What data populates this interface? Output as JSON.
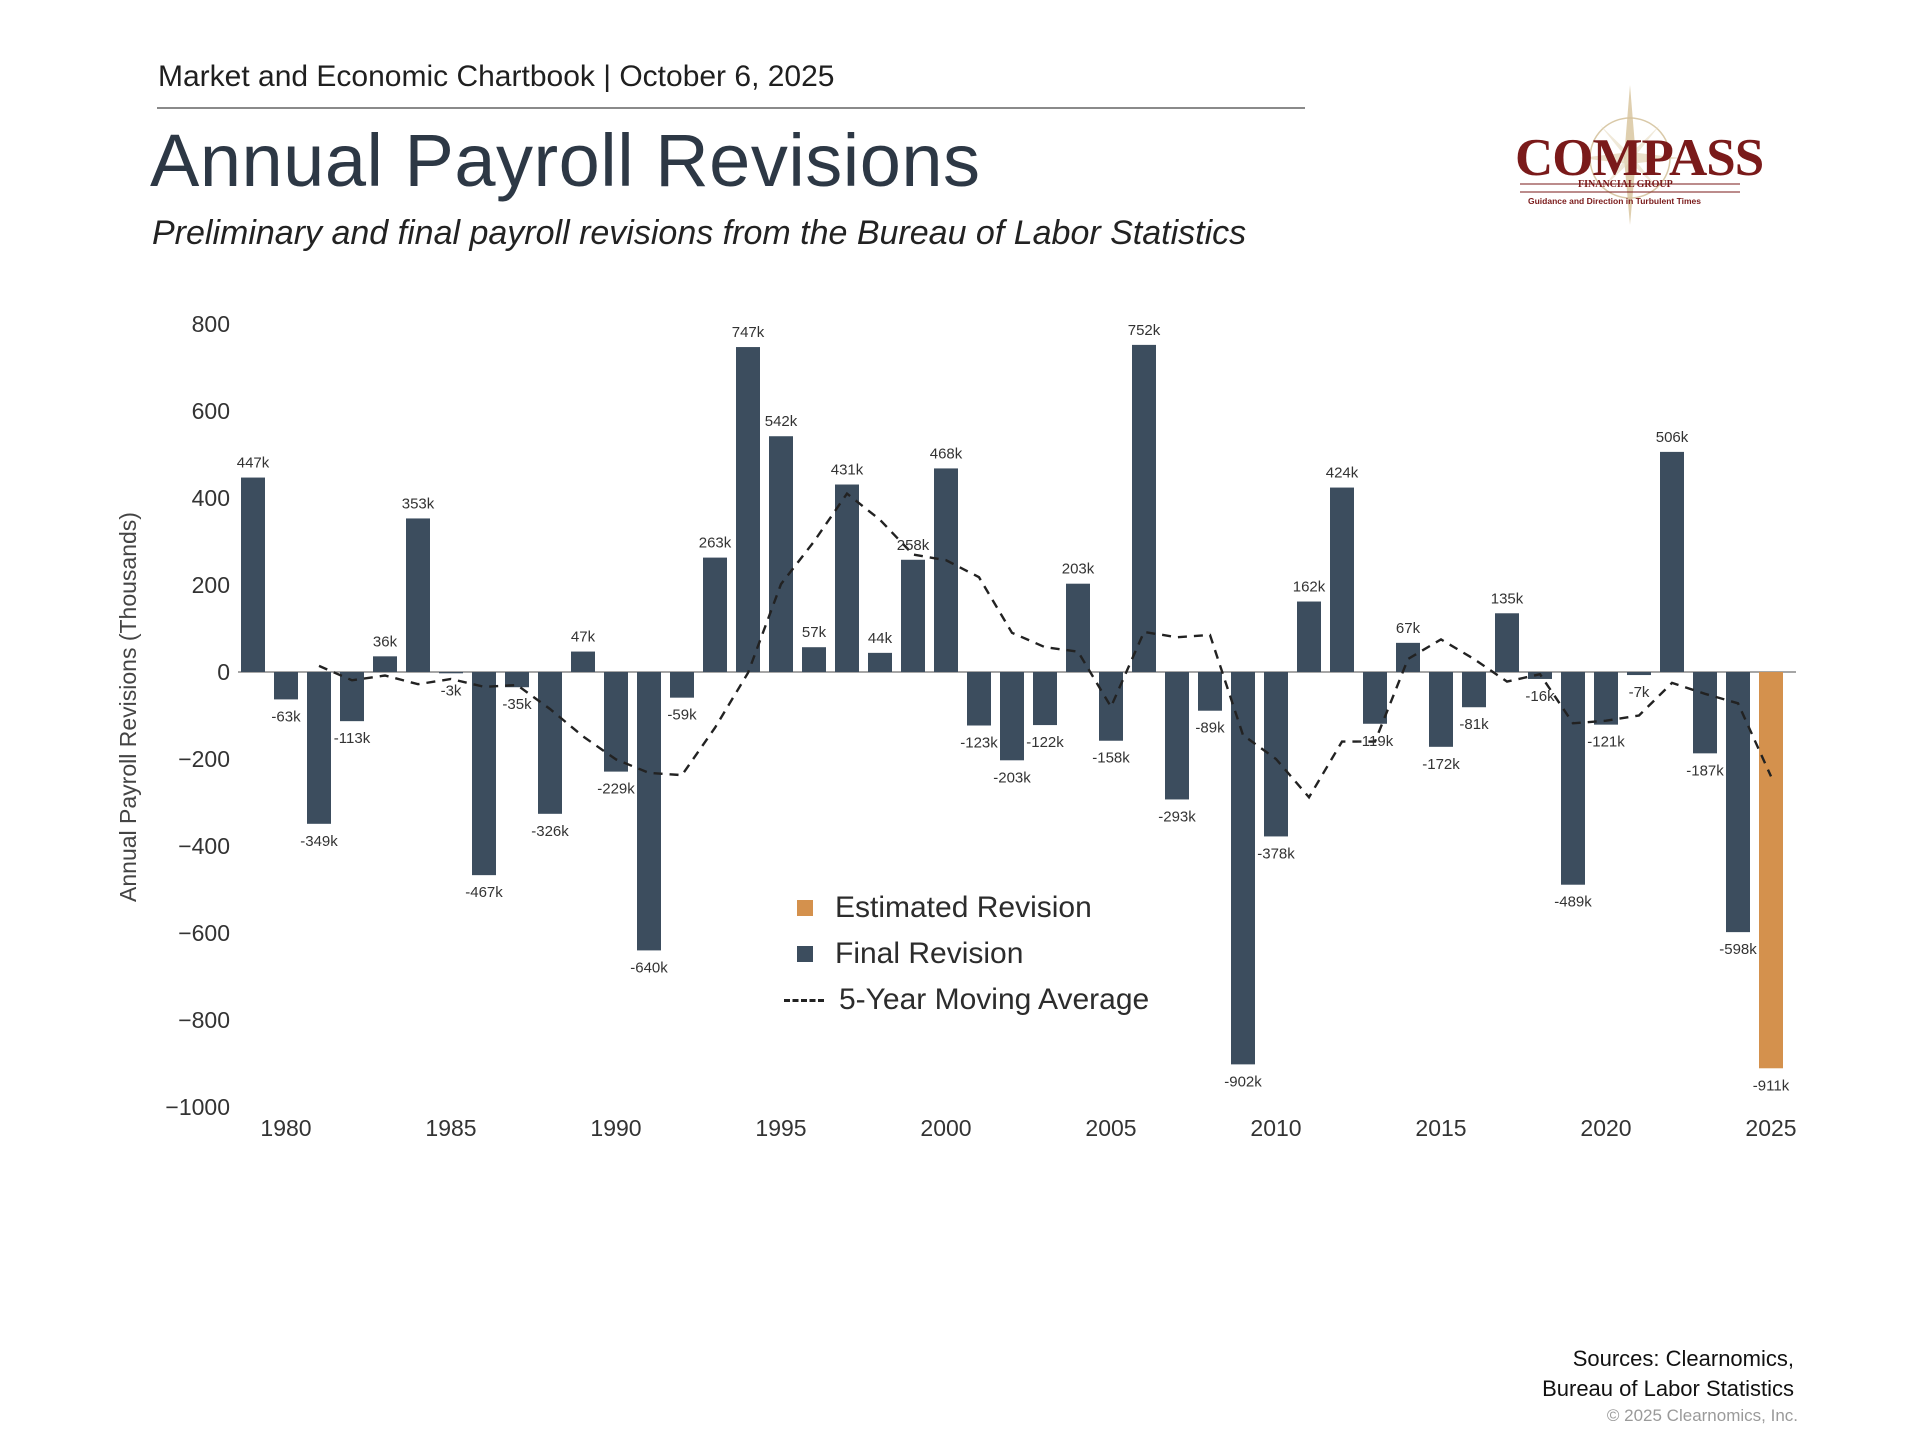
{
  "header": {
    "chartbook": "Market and Economic Chartbook | October 6, 2025",
    "title": "Annual Payroll Revisions",
    "subtitle": "Preliminary and final payroll revisions from the Bureau of Labor Statistics"
  },
  "logo": {
    "name": "COMPASS",
    "sub": "FINANCIAL GROUP",
    "tagline": "Guidance and Direction in Turbulent Times"
  },
  "footer": {
    "sources_line1": "Sources: Clearnomics,",
    "sources_line2": "Bureau of Labor Statistics",
    "copyright": "© 2025 Clearnomics, Inc."
  },
  "legend": {
    "estimated": "Estimated Revision",
    "final": "Final Revision",
    "moving_avg": "5-Year Moving Average"
  },
  "colors": {
    "final": "#3c4d5e",
    "estimated": "#d4914d",
    "moving_avg": "#222222",
    "axis": "#888888"
  },
  "chart_data": {
    "type": "bar",
    "ylabel": "Annual Payroll Revisions (Thousands)",
    "ylim": [
      -1000,
      800
    ],
    "yticks": [
      800,
      600,
      400,
      200,
      0,
      -200,
      -400,
      -600,
      -800,
      -1000
    ],
    "ytick_labels": [
      "800",
      "600",
      "400",
      "200",
      "0",
      "−200",
      "−400",
      "−600",
      "−800",
      "−1000"
    ],
    "xticks": [
      1980,
      1985,
      1990,
      1995,
      2000,
      2005,
      2010,
      2015,
      2020,
      2025
    ],
    "series": [
      {
        "name": "Final Revision",
        "x": [
          1979,
          1980,
          1981,
          1982,
          1983,
          1984,
          1985,
          1986,
          1987,
          1988,
          1989,
          1990,
          1991,
          1992,
          1993,
          1994,
          1995,
          1996,
          1997,
          1998,
          1999,
          2000,
          2001,
          2002,
          2003,
          2004,
          2005,
          2006,
          2007,
          2008,
          2009,
          2010,
          2011,
          2012,
          2013,
          2014,
          2015,
          2016,
          2017,
          2018,
          2019,
          2020,
          2021,
          2022,
          2023,
          2024
        ],
        "values": [
          447,
          -63,
          -349,
          -113,
          36,
          353,
          -3,
          -467,
          -35,
          -326,
          47,
          -229,
          -640,
          -59,
          263,
          747,
          542,
          57,
          431,
          44,
          258,
          468,
          -123,
          -203,
          -122,
          203,
          -158,
          752,
          -293,
          -89,
          -902,
          -378,
          162,
          424,
          -119,
          67,
          -172,
          -81,
          135,
          -16,
          -489,
          -121,
          -7,
          506,
          -187,
          -598
        ],
        "labels": [
          "447k",
          "-63k",
          "-349k",
          "-113k",
          "36k",
          "353k",
          "-3k",
          "-467k",
          "-35k",
          "-326k",
          "47k",
          "-229k",
          "-640k",
          "-59k",
          "263k",
          "747k",
          "542k",
          "57k",
          "431k",
          "44k",
          "258k",
          "468k",
          "-123k",
          "-203k",
          "-122k",
          "203k",
          "-158k",
          "752k",
          "-293k",
          "-89k",
          "-902k",
          "-378k",
          "162k",
          "424k",
          "-119k",
          "67k",
          "-172k",
          "-81k",
          "135k",
          "-16k",
          "-489k",
          "-121k",
          "-7k",
          "506k",
          "-187k",
          "-598k"
        ]
      },
      {
        "name": "Estimated Revision",
        "x": [
          2025
        ],
        "values": [
          -911
        ],
        "labels": [
          "-911k"
        ]
      },
      {
        "name": "5-Year Moving Average",
        "type": "line",
        "x": [
          1981,
          1982,
          1983,
          1984,
          1985,
          1986,
          1987,
          1988,
          1989,
          1990,
          1991,
          1992,
          1993,
          1994,
          1995,
          1996,
          1997,
          1998,
          1999,
          2000,
          2001,
          2002,
          2003,
          2004,
          2005,
          2006,
          2007,
          2008,
          2009,
          2010,
          2011,
          2012,
          2013,
          2014,
          2015,
          2016,
          2017,
          2018,
          2019,
          2020,
          2021,
          2022,
          2023,
          2024,
          2025
        ],
        "values": [
          14,
          -19,
          -8,
          -28,
          -16,
          -34,
          -30,
          -85,
          -148,
          -201,
          -232,
          -237,
          -128,
          -2,
          202,
          300,
          410,
          350,
          270,
          257,
          218,
          90,
          57,
          47,
          -80,
          92,
          80,
          85,
          -145,
          -200,
          -288,
          -160,
          -160,
          30,
          75,
          30,
          -22,
          -5,
          -118,
          -112,
          -100,
          -25,
          -50,
          -72,
          -240
        ]
      }
    ]
  }
}
